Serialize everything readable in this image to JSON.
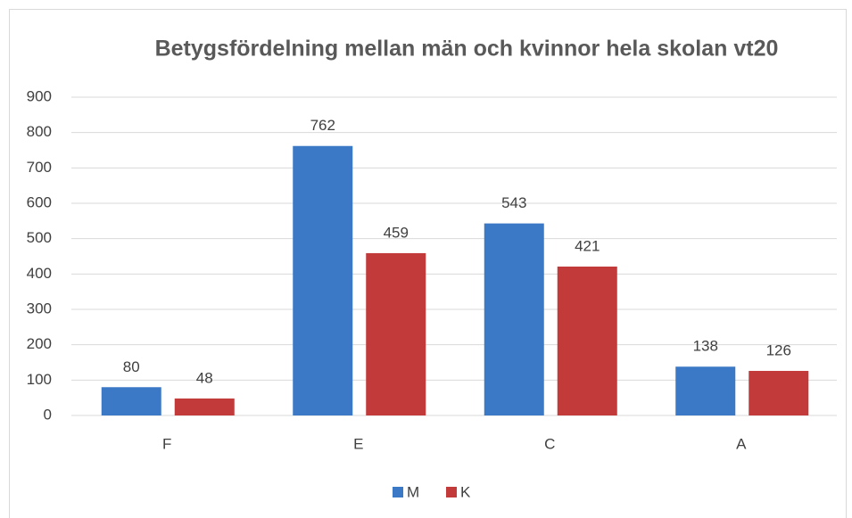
{
  "chart_data": {
    "type": "bar",
    "title": "Betygsfördelning mellan män och kvinnor hela skolan vt20",
    "categories": [
      "F",
      "E",
      "C",
      "A"
    ],
    "series": [
      {
        "name": "M",
        "color": "#3b78c6",
        "values": [
          80,
          762,
          543,
          138
        ]
      },
      {
        "name": "K",
        "color": "#c23a3a",
        "values": [
          48,
          459,
          421,
          126
        ]
      }
    ],
    "ylim": [
      0,
      900
    ],
    "yticks": [
      0,
      100,
      200,
      300,
      400,
      500,
      600,
      700,
      800,
      900
    ],
    "grid": true,
    "legend": "bottom"
  }
}
